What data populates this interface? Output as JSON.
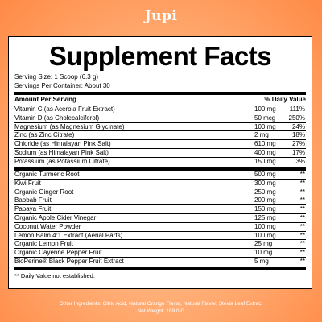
{
  "brand": "Jupi",
  "title": "Supplement Facts",
  "serving_size": "Serving Size: 1 Scoop (6.3 g)",
  "servings_per_container": "Servings Per Container: About 30",
  "header": {
    "amount": "Amount Per Serving",
    "dv": "% Daily Value"
  },
  "group1": [
    {
      "name": "Vitamin C (as Acerola Fruit Extract)",
      "amount": "100 mg",
      "dv": "111%"
    },
    {
      "name": "Vitamin D (as Cholecalciferol)",
      "amount": "50 mcg",
      "dv": "250%"
    },
    {
      "name": "Magnesium (as Magnesium Glycinate)",
      "amount": "100 mg",
      "dv": "24%"
    },
    {
      "name": "Zinc (as Zinc Citrate)",
      "amount": "2 mg",
      "dv": "18%"
    },
    {
      "name": "Chloride (as Himalayan Pink Salt)",
      "amount": "610 mg",
      "dv": "27%"
    },
    {
      "name": "Sodium (as Himalayan Pink Salt)",
      "amount": "400 mg",
      "dv": "17%"
    },
    {
      "name": "Potassium (as Potassium Citrate)",
      "amount": "150 mg",
      "dv": "3%"
    }
  ],
  "group2": [
    {
      "name": "Organic Turmeric Root",
      "amount": "500 mg",
      "dv": "**"
    },
    {
      "name": "Kiwi Fruit",
      "amount": "300 mg",
      "dv": "**"
    },
    {
      "name": "Organic Ginger Root",
      "amount": "250 mg",
      "dv": "**"
    },
    {
      "name": "Baobab Fruit",
      "amount": "200 mg",
      "dv": "**"
    },
    {
      "name": "Papaya Fruit",
      "amount": "150 mg",
      "dv": "**"
    },
    {
      "name": "Organic Apple Cider Vinegar",
      "amount": "125 mg",
      "dv": "**"
    },
    {
      "name": "Coconut Water Powder",
      "amount": "100 mg",
      "dv": "**"
    },
    {
      "name": "Lemon Balm 4:1 Extract (Aerial Parts)",
      "amount": "100 mg",
      "dv": "**"
    },
    {
      "name": "Organic Lemon Fruit",
      "amount": "25 mg",
      "dv": "**"
    },
    {
      "name": "Organic Cayenne Pepper Fruit",
      "amount": "10 mg",
      "dv": "**"
    },
    {
      "name": "BioPerine® Black Pepper Fruit Extract",
      "amount": "5 mg",
      "dv": "**"
    }
  ],
  "footnote": "** Daily Value not established.",
  "other_ingredients": "Other Ingredients: Citric Acid, Natural Orange Flavor, Natural Flavor, Stevia Leaf Extract",
  "net_weight": "Net Weight: 189.0 G"
}
